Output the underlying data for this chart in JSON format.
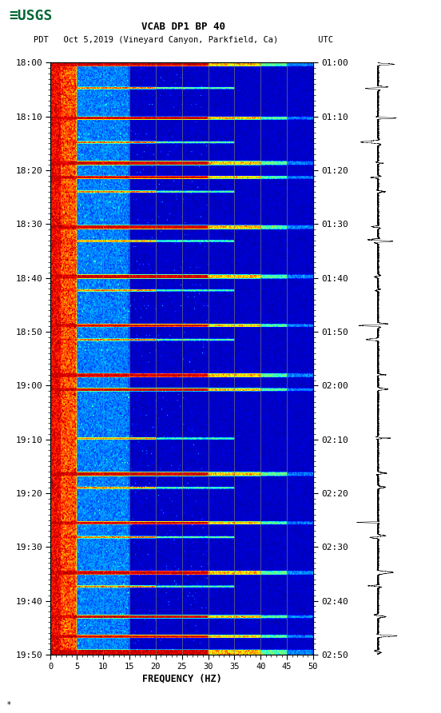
{
  "title_line1": "VCAB DP1 BP 40",
  "title_line2": "PDT   Oct 5,2019 (Vineyard Canyon, Parkfield, Ca)        UTC",
  "xlabel": "FREQUENCY (HZ)",
  "freq_min": 0,
  "freq_max": 50,
  "freq_ticks": [
    0,
    5,
    10,
    15,
    20,
    25,
    30,
    35,
    40,
    45,
    50
  ],
  "time_labels_left": [
    "18:00",
    "18:10",
    "18:20",
    "18:30",
    "18:40",
    "18:50",
    "19:00",
    "19:10",
    "19:20",
    "19:30",
    "19:40",
    "19:50"
  ],
  "time_labels_right": [
    "01:00",
    "01:10",
    "01:20",
    "01:30",
    "01:40",
    "01:50",
    "02:00",
    "02:10",
    "02:20",
    "02:30",
    "02:40",
    "02:50"
  ],
  "n_time_steps": 600,
  "n_freq_steps": 500,
  "background_color": "#ffffff",
  "grid_color": "#888866",
  "grid_alpha": 0.6,
  "vertical_grid_freqs": [
    5,
    10,
    15,
    20,
    25,
    30,
    35,
    40,
    45
  ],
  "event_bands": [
    0,
    1,
    2,
    3,
    55,
    56,
    57,
    100,
    101,
    102,
    103,
    115,
    116,
    117,
    165,
    166,
    167,
    168,
    215,
    216,
    217,
    218,
    265,
    266,
    267,
    315,
    316,
    317,
    318,
    330,
    331,
    332,
    415,
    416,
    417,
    418,
    465,
    466,
    467,
    515,
    516,
    517,
    518,
    560,
    561,
    562,
    580,
    581,
    582,
    595,
    596,
    597,
    598,
    599
  ],
  "partial_bands": [
    25,
    26,
    80,
    81,
    130,
    131,
    180,
    181,
    230,
    231,
    280,
    281,
    380,
    381,
    430,
    431,
    480,
    481,
    530,
    531
  ],
  "usgs_color": "#006633"
}
